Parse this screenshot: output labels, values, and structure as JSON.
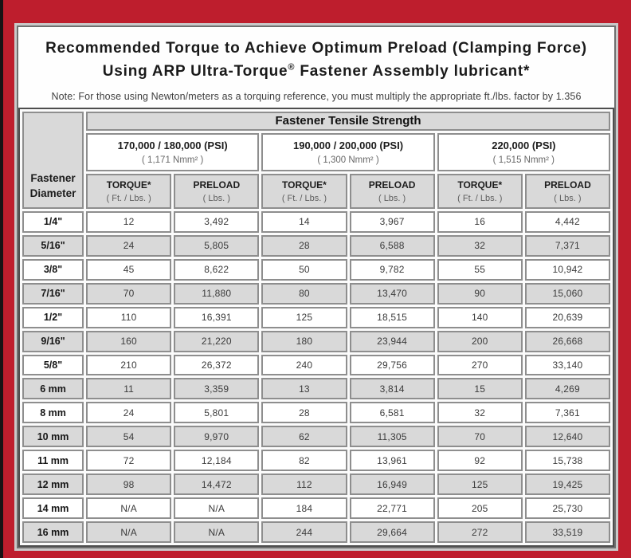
{
  "colors": {
    "frame_red": "#be1e2d",
    "row_shade_gray": "#d9d9d9",
    "header_gray": "#d9d9d9",
    "cell_border_gray": "#8e8e8e"
  },
  "title": {
    "line1": "Recommended Torque to Achieve Optimum Preload (Clamping Force)",
    "line2_pre": "Using ARP Ultra-Torque",
    "line2_sup": "®",
    "line2_post": " Fastener Assembly lubricant*",
    "note": "Note: For those using Newton/meters as a torquing reference, you must multiply the appropriate ft./lbs. factor by 1.356"
  },
  "table": {
    "corner_header": "Fastener Diameter",
    "tensile_header": "Fastener Tensile Strength",
    "strength_groups": [
      {
        "psi": "170,000 / 180,000 (PSI)",
        "nmm": "( 1,171 Nmm² )"
      },
      {
        "psi": "190,000 / 200,000 (PSI)",
        "nmm": "( 1,300 Nmm² )"
      },
      {
        "psi": "220,000 (PSI)",
        "nmm": "( 1,515 Nmm² )"
      }
    ],
    "columns": [
      {
        "label": "TORQUE*",
        "unit": "( Ft. / Lbs. )"
      },
      {
        "label": "PRELOAD",
        "unit": "( Lbs. )"
      },
      {
        "label": "TORQUE*",
        "unit": "( Ft. / Lbs. )"
      },
      {
        "label": "PRELOAD",
        "unit": "( Lbs. )"
      },
      {
        "label": "TORQUE*",
        "unit": "( Ft. / Lbs. )"
      },
      {
        "label": "PRELOAD",
        "unit": "( Lbs. )"
      }
    ],
    "rows": [
      {
        "dia": "1/4\"",
        "values": [
          "12",
          "3,492",
          "14",
          "3,967",
          "16",
          "4,442"
        ]
      },
      {
        "dia": "5/16\"",
        "values": [
          "24",
          "5,805",
          "28",
          "6,588",
          "32",
          "7,371"
        ]
      },
      {
        "dia": "3/8\"",
        "values": [
          "45",
          "8,622",
          "50",
          "9,782",
          "55",
          "10,942"
        ]
      },
      {
        "dia": "7/16\"",
        "values": [
          "70",
          "11,880",
          "80",
          "13,470",
          "90",
          "15,060"
        ]
      },
      {
        "dia": "1/2\"",
        "values": [
          "110",
          "16,391",
          "125",
          "18,515",
          "140",
          "20,639"
        ]
      },
      {
        "dia": "9/16\"",
        "values": [
          "160",
          "21,220",
          "180",
          "23,944",
          "200",
          "26,668"
        ]
      },
      {
        "dia": "5/8\"",
        "values": [
          "210",
          "26,372",
          "240",
          "29,756",
          "270",
          "33,140"
        ]
      },
      {
        "dia": "6 mm",
        "values": [
          "11",
          "3,359",
          "13",
          "3,814",
          "15",
          "4,269"
        ]
      },
      {
        "dia": "8 mm",
        "values": [
          "24",
          "5,801",
          "28",
          "6,581",
          "32",
          "7,361"
        ]
      },
      {
        "dia": "10 mm",
        "values": [
          "54",
          "9,970",
          "62",
          "11,305",
          "70",
          "12,640"
        ]
      },
      {
        "dia": "11 mm",
        "values": [
          "72",
          "12,184",
          "82",
          "13,961",
          "92",
          "15,738"
        ]
      },
      {
        "dia": "12 mm",
        "values": [
          "98",
          "14,472",
          "112",
          "16,949",
          "125",
          "19,425"
        ]
      },
      {
        "dia": "14 mm",
        "values": [
          "N/A",
          "N/A",
          "184",
          "22,771",
          "205",
          "25,730"
        ]
      },
      {
        "dia": "16 mm",
        "values": [
          "N/A",
          "N/A",
          "244",
          "29,664",
          "272",
          "33,519"
        ]
      }
    ]
  }
}
